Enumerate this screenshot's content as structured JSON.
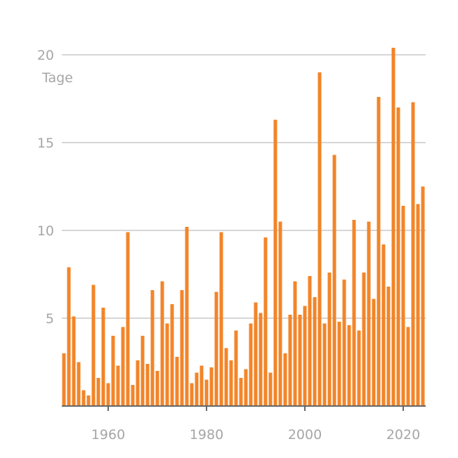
{
  "chart_data": {
    "type": "bar",
    "title": "",
    "xlabel": "",
    "ylabel": "Tage",
    "ylim": [
      0,
      20
    ],
    "yticks": [
      5,
      10,
      15,
      20
    ],
    "xticks": [
      1960,
      1980,
      2000,
      2020
    ],
    "xlim": [
      1950.5,
      2024.5
    ],
    "grid": true,
    "bar_color": "#f28529",
    "categories": [
      1951,
      1952,
      1953,
      1954,
      1955,
      1956,
      1957,
      1958,
      1959,
      1960,
      1961,
      1962,
      1963,
      1964,
      1965,
      1966,
      1967,
      1968,
      1969,
      1970,
      1971,
      1972,
      1973,
      1974,
      1975,
      1976,
      1977,
      1978,
      1979,
      1980,
      1981,
      1982,
      1983,
      1984,
      1985,
      1986,
      1987,
      1988,
      1989,
      1990,
      1991,
      1992,
      1993,
      1994,
      1995,
      1996,
      1997,
      1998,
      1999,
      2000,
      2001,
      2002,
      2003,
      2004,
      2005,
      2006,
      2007,
      2008,
      2009,
      2010,
      2011,
      2012,
      2013,
      2014,
      2015,
      2016,
      2017,
      2018,
      2019,
      2020,
      2021,
      2022,
      2023,
      2024
    ],
    "values": [
      3.0,
      7.9,
      5.1,
      2.5,
      0.9,
      0.6,
      6.9,
      1.6,
      5.6,
      1.3,
      4.0,
      2.3,
      4.5,
      9.9,
      1.2,
      2.6,
      4.0,
      2.4,
      6.6,
      2.0,
      7.1,
      4.7,
      5.8,
      2.8,
      6.6,
      10.2,
      1.3,
      1.9,
      2.3,
      1.5,
      2.2,
      6.5,
      9.9,
      3.3,
      2.6,
      4.3,
      1.6,
      2.1,
      4.7,
      5.9,
      5.3,
      9.6,
      1.9,
      16.3,
      10.5,
      3.0,
      5.2,
      7.1,
      5.2,
      5.7,
      7.4,
      6.2,
      19.0,
      4.7,
      7.6,
      14.3,
      4.8,
      7.2,
      4.6,
      10.6,
      4.3,
      7.6,
      10.5,
      6.1,
      17.6,
      9.2,
      6.8,
      20.4,
      17.0,
      11.4,
      4.5,
      17.3,
      11.5,
      12.5
    ]
  }
}
